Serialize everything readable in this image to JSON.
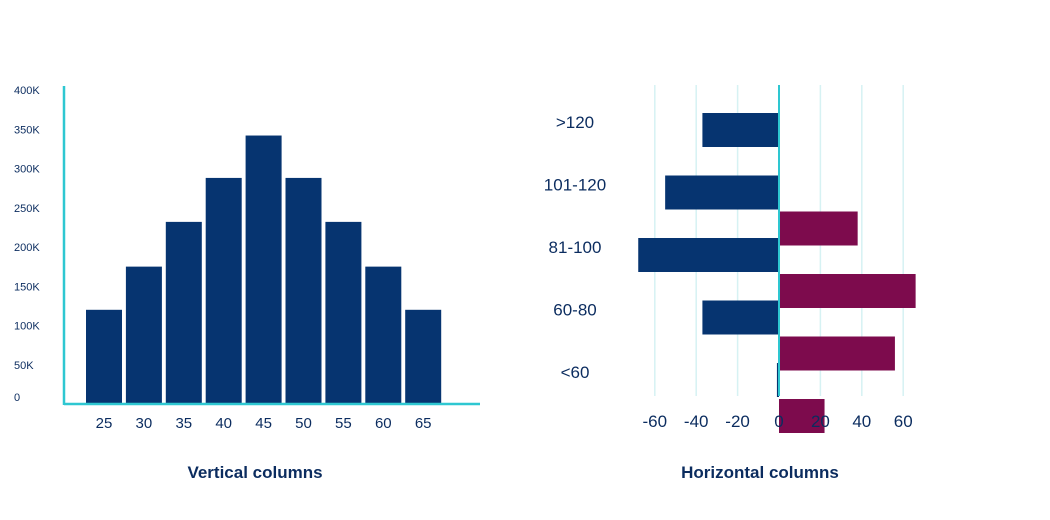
{
  "colors": {
    "navy": "#063470",
    "magenta": "#7d0b4d",
    "axis": "#2ec7d1",
    "grid": "#d6f2f3",
    "label": "#0b2c5f"
  },
  "chart_data": [
    {
      "type": "bar",
      "orientation": "vertical",
      "caption": "Vertical columns",
      "categories": [
        "25",
        "30",
        "35",
        "40",
        "45",
        "50",
        "55",
        "60",
        "65"
      ],
      "values": [
        120000,
        175000,
        232000,
        288000,
        342000,
        288000,
        232000,
        175000,
        120000
      ],
      "yticks": [
        "0",
        "50K",
        "100K",
        "150K",
        "200K",
        "250K",
        "300K",
        "350K",
        "400K"
      ],
      "ylim": [
        0,
        400000
      ],
      "grid": false
    },
    {
      "type": "bar",
      "orientation": "horizontal",
      "caption": "Horizontal columns",
      "categories": [
        ">120",
        "101-120",
        "81-100",
        "60-80",
        "<60"
      ],
      "series": [
        {
          "values": [
            -37,
            -55,
            -68,
            -37,
            -1
          ]
        },
        {
          "values": [
            0,
            38,
            66,
            56,
            22
          ]
        }
      ],
      "xticks": [
        "-60",
        "-40",
        "-20",
        "0",
        "20",
        "40",
        "60"
      ],
      "xlim": [
        -70,
        70
      ],
      "grid": true
    }
  ]
}
